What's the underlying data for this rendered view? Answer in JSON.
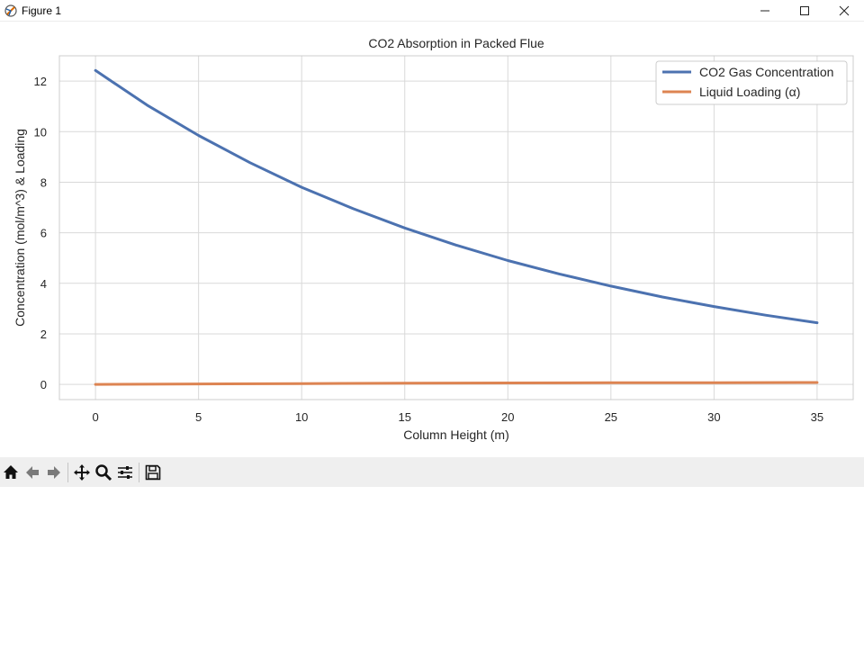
{
  "window": {
    "title": "Figure 1",
    "icon": "matplotlib-figure-icon",
    "controls": [
      "minimize-icon",
      "maximize-icon",
      "close-icon"
    ]
  },
  "toolbar": {
    "buttons": [
      "home-icon",
      "back-icon",
      "forward-icon",
      "pan-icon",
      "zoom-icon",
      "configure-subplots-icon",
      "save-icon"
    ]
  },
  "colors": {
    "series_gas": "#4c72b0",
    "series_liquid": "#dd8452",
    "grid": "#d9d9d9",
    "axes_edge": "#cccccc"
  },
  "chart_data": {
    "type": "line",
    "title": "CO2 Absorption in Packed Flue",
    "xlabel": "Column Height (m)",
    "ylabel": "Concentration (mol/m^3) & Loading",
    "xlim": [
      -1.75,
      36.75
    ],
    "ylim": [
      -0.6,
      13.0
    ],
    "xticks": [
      0,
      5,
      10,
      15,
      20,
      25,
      30,
      35
    ],
    "yticks": [
      0,
      2,
      4,
      6,
      8,
      10,
      12
    ],
    "grid": true,
    "legend_position": "top-right",
    "series": [
      {
        "name": "CO2 Gas Concentration",
        "color": "#4c72b0",
        "x": [
          0,
          2.5,
          5,
          7.5,
          10,
          12.5,
          15,
          17.5,
          20,
          22.5,
          25,
          27.5,
          30,
          32.5,
          35
        ],
        "y": [
          12.42,
          11.05,
          9.85,
          8.77,
          7.8,
          6.95,
          6.19,
          5.51,
          4.9,
          4.37,
          3.89,
          3.46,
          3.08,
          2.74,
          2.44
        ]
      },
      {
        "name": "Liquid Loading (α)",
        "color": "#dd8452",
        "x": [
          0,
          5,
          10,
          15,
          20,
          25,
          30,
          35
        ],
        "y": [
          0.0,
          0.02,
          0.035,
          0.047,
          0.057,
          0.065,
          0.071,
          0.075
        ]
      }
    ]
  }
}
